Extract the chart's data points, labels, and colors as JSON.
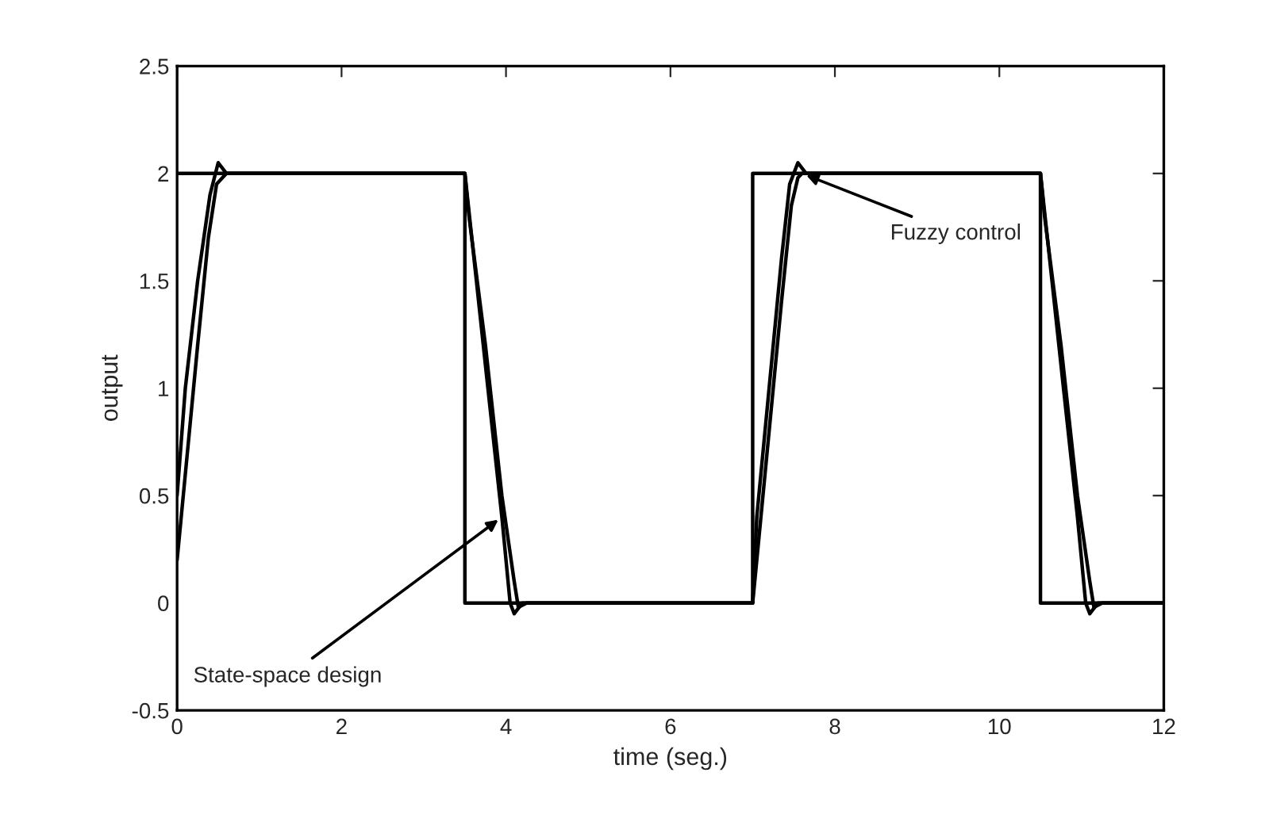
{
  "chart_data": {
    "type": "line",
    "xlabel": "time (seg.)",
    "ylabel": "output",
    "xlim": [
      0,
      12
    ],
    "ylim": [
      -0.5,
      2.5
    ],
    "xticks": [
      0,
      2,
      4,
      6,
      8,
      10,
      12
    ],
    "yticks": [
      -0.5,
      0,
      0.5,
      1,
      1.5,
      2,
      2.5
    ],
    "line_style": "solid",
    "marker": "none",
    "grid": false,
    "legend": false,
    "series": [
      {
        "color": "#000000",
        "x": [
          0,
          3.5,
          3.5,
          7,
          7,
          10.5,
          10.5,
          12
        ],
        "values": [
          2,
          2,
          0,
          0,
          2,
          2,
          0,
          0
        ]
      },
      {
        "color": "#000000",
        "x": [
          0,
          0.1,
          0.25,
          0.4,
          0.5,
          0.6,
          3.5,
          3.57,
          3.78,
          3.95,
          4.05,
          4.1,
          4.2,
          7.0,
          7.05,
          7.2,
          7.35,
          7.45,
          7.55,
          7.65,
          10.5,
          10.57,
          10.78,
          10.95,
          11.05,
          11.1,
          11.2,
          12
        ],
        "values": [
          0.5,
          1.0,
          1.5,
          1.9,
          2.05,
          2.0,
          2.0,
          1.75,
          1.0,
          0.4,
          0,
          -0.05,
          0,
          0,
          0.4,
          1.0,
          1.6,
          1.95,
          2.05,
          2.0,
          2.0,
          1.75,
          1.0,
          0.4,
          0,
          -0.05,
          0,
          0
        ]
      },
      {
        "color": "#000000",
        "x": [
          0,
          0.1,
          0.25,
          0.38,
          0.48,
          0.6,
          3.5,
          3.55,
          3.75,
          3.95,
          4.1,
          4.15,
          4.25,
          7.0,
          7.05,
          7.2,
          7.35,
          7.47,
          7.55,
          7.6,
          10.5,
          10.55,
          10.75,
          10.95,
          11.1,
          11.15,
          11.25,
          12
        ],
        "values": [
          0.2,
          0.6,
          1.2,
          1.7,
          1.95,
          2.0,
          2.0,
          1.8,
          1.2,
          0.5,
          0.1,
          -0.02,
          0,
          0,
          0.2,
          0.8,
          1.4,
          1.85,
          1.98,
          2.0,
          2.0,
          1.8,
          1.2,
          0.5,
          0.1,
          -0.02,
          0,
          0
        ]
      }
    ],
    "annotations": [
      {
        "text": "Fuzzy control",
        "x": 7.6,
        "y": 2.0
      },
      {
        "text": "State-space design",
        "x": 3.95,
        "y": 0.4
      }
    ]
  }
}
